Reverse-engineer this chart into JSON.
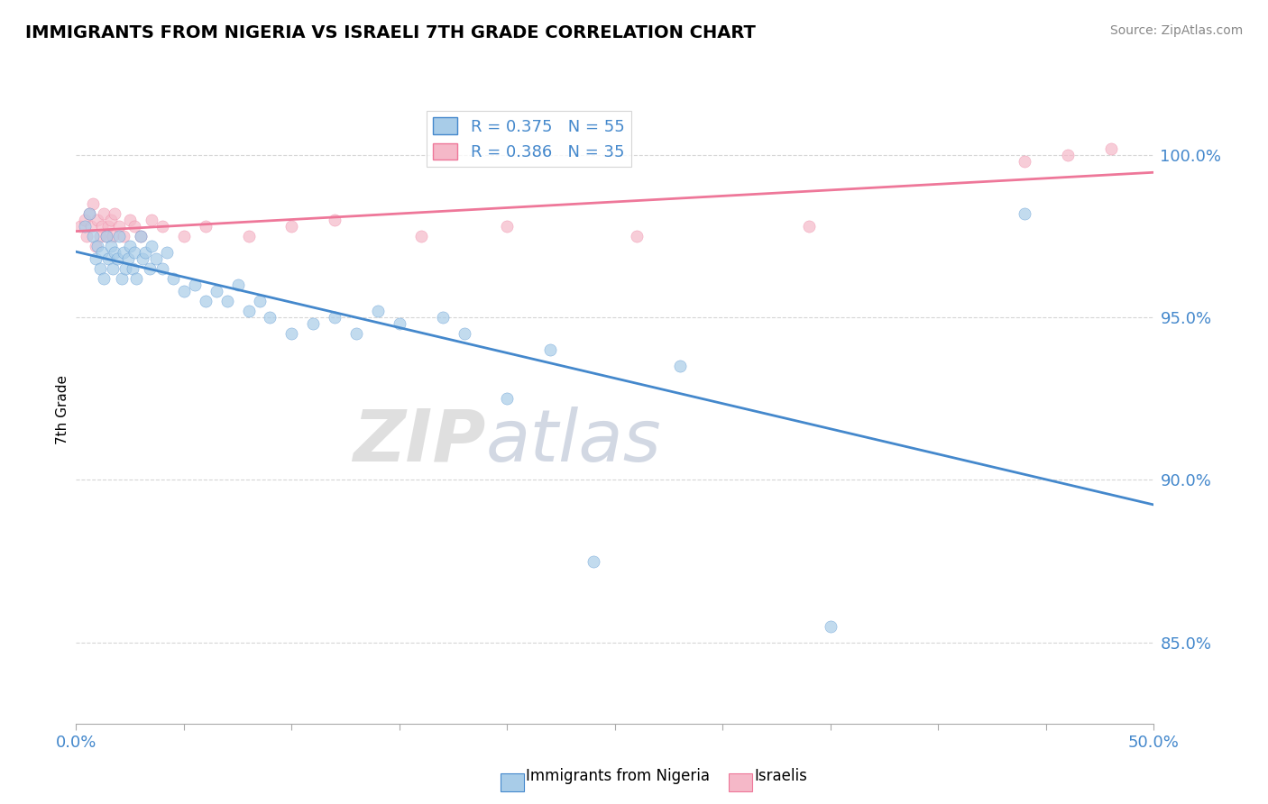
{
  "title": "IMMIGRANTS FROM NIGERIA VS ISRAELI 7TH GRADE CORRELATION CHART",
  "ylabel": "7th Grade",
  "source": "Source: ZipAtlas.com",
  "watermark": "ZIPatlas",
  "xlim": [
    0.0,
    50.0
  ],
  "ylim": [
    82.5,
    101.8
  ],
  "yticks": [
    85.0,
    90.0,
    95.0,
    100.0
  ],
  "xticks": [
    0.0,
    5.0,
    10.0,
    15.0,
    20.0,
    25.0,
    30.0,
    35.0,
    40.0,
    45.0,
    50.0
  ],
  "legend_r1": "R = 0.375",
  "legend_n1": "N = 55",
  "legend_r2": "R = 0.386",
  "legend_n2": "N = 35",
  "color_nigeria": "#a8cce8",
  "color_israel": "#f5b8c8",
  "color_nigeria_line": "#4488cc",
  "color_israel_line": "#ee7799",
  "color_axis_labels": "#4488cc",
  "scatter_alpha": 0.7,
  "scatter_size": 90,
  "nigeria_x": [
    0.4,
    0.6,
    0.8,
    0.9,
    1.0,
    1.1,
    1.2,
    1.3,
    1.4,
    1.5,
    1.6,
    1.7,
    1.8,
    1.9,
    2.0,
    2.1,
    2.2,
    2.3,
    2.4,
    2.5,
    2.6,
    2.7,
    2.8,
    3.0,
    3.1,
    3.2,
    3.4,
    3.5,
    3.7,
    4.0,
    4.2,
    4.5,
    5.0,
    5.5,
    6.0,
    6.5,
    7.0,
    7.5,
    8.0,
    8.5,
    9.0,
    10.0,
    11.0,
    12.0,
    13.0,
    14.0,
    15.0,
    17.0,
    18.0,
    20.0,
    22.0,
    24.0,
    28.0,
    35.0,
    44.0
  ],
  "nigeria_y": [
    97.8,
    98.2,
    97.5,
    96.8,
    97.2,
    96.5,
    97.0,
    96.2,
    97.5,
    96.8,
    97.2,
    96.5,
    97.0,
    96.8,
    97.5,
    96.2,
    97.0,
    96.5,
    96.8,
    97.2,
    96.5,
    97.0,
    96.2,
    97.5,
    96.8,
    97.0,
    96.5,
    97.2,
    96.8,
    96.5,
    97.0,
    96.2,
    95.8,
    96.0,
    95.5,
    95.8,
    95.5,
    96.0,
    95.2,
    95.5,
    95.0,
    94.5,
    94.8,
    95.0,
    94.5,
    95.2,
    94.8,
    95.0,
    94.5,
    92.5,
    94.0,
    87.5,
    93.5,
    85.5,
    98.2
  ],
  "israel_x": [
    0.2,
    0.4,
    0.5,
    0.6,
    0.7,
    0.8,
    0.9,
    1.0,
    1.1,
    1.2,
    1.3,
    1.4,
    1.5,
    1.6,
    1.7,
    1.8,
    2.0,
    2.2,
    2.5,
    2.7,
    3.0,
    3.5,
    4.0,
    5.0,
    6.0,
    8.0,
    10.0,
    12.0,
    16.0,
    20.0,
    26.0,
    34.0,
    44.0,
    46.0,
    48.0
  ],
  "israel_y": [
    97.8,
    98.0,
    97.5,
    98.2,
    97.8,
    98.5,
    97.2,
    98.0,
    97.5,
    97.8,
    98.2,
    97.5,
    97.8,
    98.0,
    97.5,
    98.2,
    97.8,
    97.5,
    98.0,
    97.8,
    97.5,
    98.0,
    97.8,
    97.5,
    97.8,
    97.5,
    97.8,
    98.0,
    97.5,
    97.8,
    97.5,
    97.8,
    99.8,
    100.0,
    100.2
  ]
}
